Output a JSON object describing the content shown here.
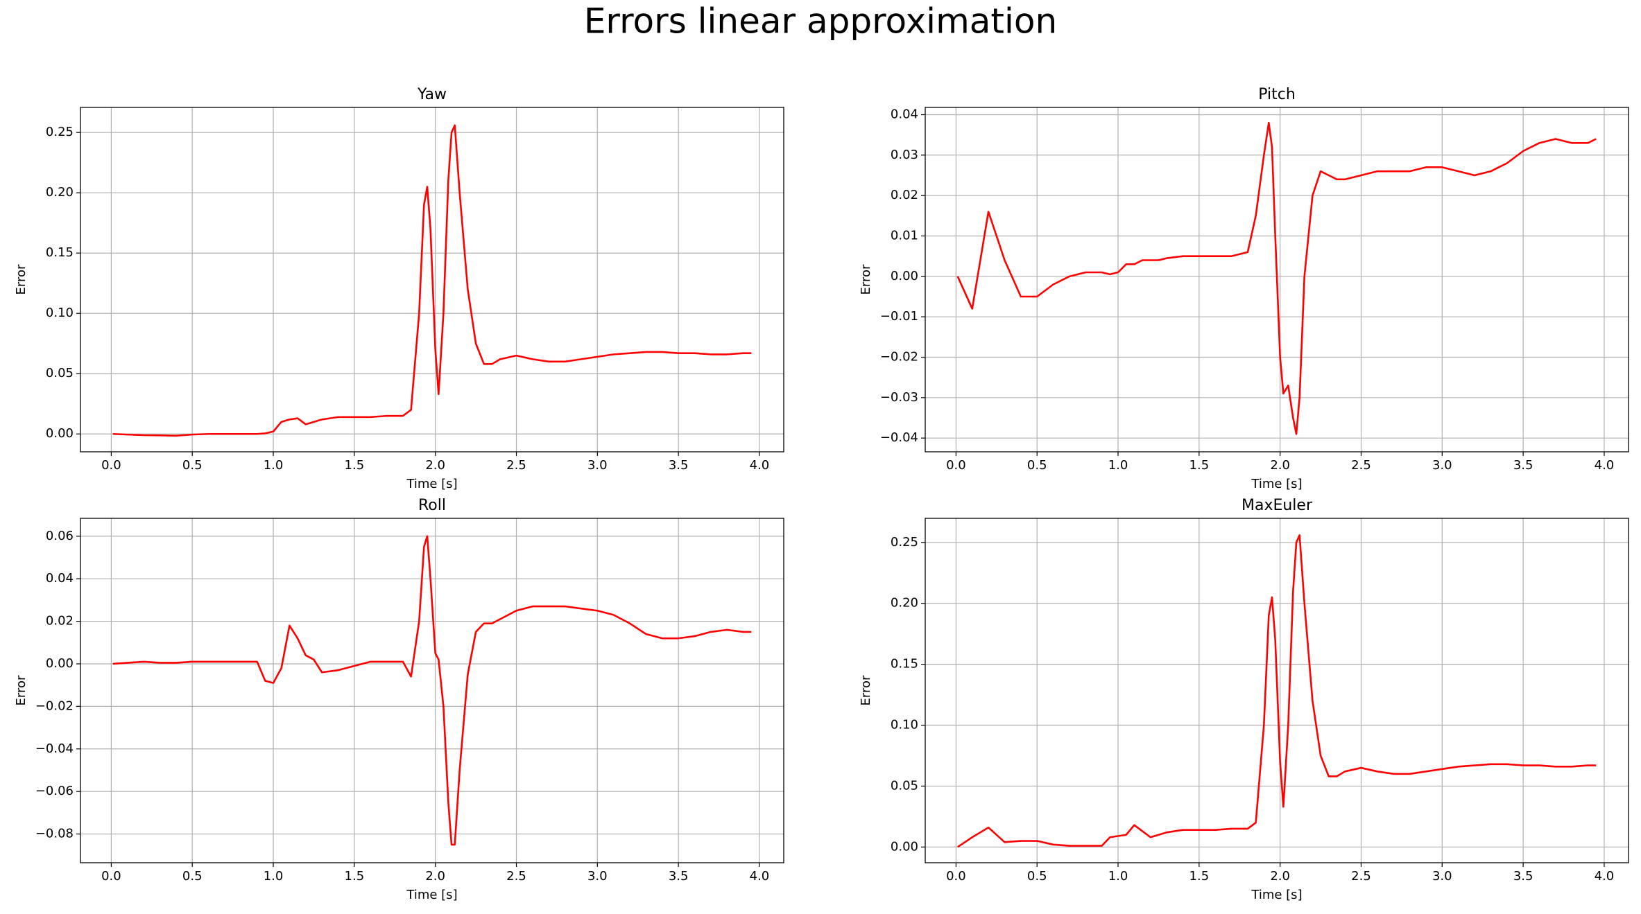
{
  "title": "Errors linear approximation",
  "chart_data": [
    {
      "type": "line",
      "title": "Yaw",
      "xlabel": "Time [s]",
      "ylabel": "Error",
      "color": "#ff0000",
      "grid": true,
      "x": [
        0.01,
        0.1,
        0.2,
        0.3,
        0.4,
        0.5,
        0.6,
        0.7,
        0.8,
        0.9,
        0.95,
        1.0,
        1.05,
        1.1,
        1.15,
        1.2,
        1.25,
        1.3,
        1.4,
        1.5,
        1.6,
        1.7,
        1.8,
        1.85,
        1.9,
        1.93,
        1.95,
        1.97,
        2.0,
        2.02,
        2.05,
        2.08,
        2.1,
        2.12,
        2.15,
        2.2,
        2.25,
        2.3,
        2.35,
        2.4,
        2.5,
        2.6,
        2.7,
        2.8,
        2.9,
        3.0,
        3.1,
        3.2,
        3.3,
        3.4,
        3.5,
        3.6,
        3.7,
        3.8,
        3.9,
        3.95
      ],
      "values": [
        0,
        -0.0005,
        -0.001,
        -0.0012,
        -0.0015,
        -0.0005,
        0,
        0,
        0,
        0,
        0.0005,
        0.002,
        0.01,
        0.012,
        0.013,
        0.008,
        0.01,
        0.012,
        0.014,
        0.014,
        0.014,
        0.015,
        0.015,
        0.02,
        0.1,
        0.19,
        0.205,
        0.17,
        0.07,
        0.033,
        0.1,
        0.21,
        0.25,
        0.256,
        0.2,
        0.12,
        0.075,
        0.058,
        0.058,
        0.062,
        0.065,
        0.062,
        0.06,
        0.06,
        0.062,
        0.064,
        0.066,
        0.067,
        0.068,
        0.068,
        0.067,
        0.067,
        0.066,
        0.066,
        0.067,
        0.067
      ],
      "xlim": [
        -0.19,
        4.15
      ],
      "ylim": [
        -0.0148,
        0.2708
      ],
      "xticks": [
        {
          "value": 0,
          "label": "0.0"
        },
        {
          "value": 0.5,
          "label": "0.5"
        },
        {
          "value": 1,
          "label": "1.0"
        },
        {
          "value": 1.5,
          "label": "1.5"
        },
        {
          "value": 2,
          "label": "2.0"
        },
        {
          "value": 2.5,
          "label": "2.5"
        },
        {
          "value": 3,
          "label": "3.0"
        },
        {
          "value": 3.5,
          "label": "3.5"
        },
        {
          "value": 4,
          "label": "4.0"
        }
      ],
      "yticks": [
        {
          "value": 0,
          "label": "0.00"
        },
        {
          "value": 0.05,
          "label": "0.05"
        },
        {
          "value": 0.1,
          "label": "0.10"
        },
        {
          "value": 0.15,
          "label": "0.15"
        },
        {
          "value": 0.2,
          "label": "0.20"
        },
        {
          "value": 0.25,
          "label": "0.25"
        }
      ]
    },
    {
      "type": "line",
      "title": "Pitch",
      "xlabel": "Time [s]",
      "ylabel": "Error",
      "color": "#ff0000",
      "grid": true,
      "x": [
        0.01,
        0.1,
        0.2,
        0.3,
        0.4,
        0.5,
        0.6,
        0.7,
        0.8,
        0.9,
        0.95,
        1.0,
        1.05,
        1.1,
        1.15,
        1.2,
        1.25,
        1.3,
        1.4,
        1.5,
        1.6,
        1.7,
        1.8,
        1.85,
        1.9,
        1.93,
        1.95,
        1.97,
        2.0,
        2.02,
        2.05,
        2.08,
        2.1,
        2.12,
        2.15,
        2.2,
        2.25,
        2.3,
        2.35,
        2.4,
        2.5,
        2.6,
        2.7,
        2.8,
        2.9,
        3.0,
        3.1,
        3.2,
        3.3,
        3.4,
        3.5,
        3.6,
        3.7,
        3.8,
        3.9,
        3.95
      ],
      "values": [
        0,
        -0.008,
        0.016,
        0.004,
        -0.005,
        -0.005,
        -0.002,
        0,
        0.001,
        0.001,
        0.0005,
        0.001,
        0.003,
        0.003,
        0.004,
        0.004,
        0.004,
        0.0045,
        0.005,
        0.005,
        0.005,
        0.005,
        0.006,
        0.015,
        0.03,
        0.038,
        0.032,
        0.01,
        -0.02,
        -0.029,
        -0.027,
        -0.035,
        -0.039,
        -0.03,
        0,
        0.02,
        0.026,
        0.025,
        0.024,
        0.024,
        0.025,
        0.026,
        0.026,
        0.026,
        0.027,
        0.027,
        0.026,
        0.025,
        0.026,
        0.028,
        0.031,
        0.033,
        0.034,
        0.033,
        0.033,
        0.034
      ],
      "xlim": [
        -0.19,
        4.15
      ],
      "ylim": [
        -0.0434,
        0.0418
      ],
      "xticks": [
        {
          "value": 0,
          "label": "0.0"
        },
        {
          "value": 0.5,
          "label": "0.5"
        },
        {
          "value": 1,
          "label": "1.0"
        },
        {
          "value": 1.5,
          "label": "1.5"
        },
        {
          "value": 2,
          "label": "2.0"
        },
        {
          "value": 2.5,
          "label": "2.5"
        },
        {
          "value": 3,
          "label": "3.0"
        },
        {
          "value": 3.5,
          "label": "3.5"
        },
        {
          "value": 4,
          "label": "4.0"
        }
      ],
      "yticks": [
        {
          "value": -0.04,
          "label": "−0.04"
        },
        {
          "value": -0.03,
          "label": "−0.03"
        },
        {
          "value": -0.02,
          "label": "−0.02"
        },
        {
          "value": -0.01,
          "label": "−0.01"
        },
        {
          "value": 0,
          "label": "0.00"
        },
        {
          "value": 0.01,
          "label": "0.01"
        },
        {
          "value": 0.02,
          "label": "0.02"
        },
        {
          "value": 0.03,
          "label": "0.03"
        },
        {
          "value": 0.04,
          "label": "0.04"
        }
      ]
    },
    {
      "type": "line",
      "title": "Roll",
      "xlabel": "Time [s]",
      "ylabel": "Error",
      "color": "#ff0000",
      "grid": true,
      "x": [
        0.01,
        0.1,
        0.2,
        0.3,
        0.4,
        0.5,
        0.6,
        0.7,
        0.8,
        0.9,
        0.95,
        1.0,
        1.05,
        1.1,
        1.15,
        1.2,
        1.25,
        1.3,
        1.4,
        1.5,
        1.6,
        1.7,
        1.8,
        1.85,
        1.9,
        1.93,
        1.95,
        1.97,
        2.0,
        2.02,
        2.05,
        2.08,
        2.1,
        2.12,
        2.15,
        2.2,
        2.25,
        2.3,
        2.35,
        2.4,
        2.5,
        2.6,
        2.7,
        2.8,
        2.9,
        3.0,
        3.1,
        3.2,
        3.3,
        3.4,
        3.5,
        3.6,
        3.7,
        3.8,
        3.9,
        3.95
      ],
      "values": [
        0,
        0.0005,
        0.001,
        0.0005,
        0.0005,
        0.001,
        0.001,
        0.001,
        0.001,
        0.001,
        -0.008,
        -0.009,
        -0.002,
        0.018,
        0.012,
        0.004,
        0.002,
        -0.004,
        -0.003,
        -0.001,
        0.001,
        0.001,
        0.001,
        -0.006,
        0.02,
        0.055,
        0.06,
        0.04,
        0.005,
        0.002,
        -0.02,
        -0.065,
        -0.085,
        -0.085,
        -0.05,
        -0.005,
        0.015,
        0.019,
        0.019,
        0.021,
        0.025,
        0.027,
        0.027,
        0.027,
        0.026,
        0.025,
        0.023,
        0.019,
        0.014,
        0.012,
        0.012,
        0.013,
        0.015,
        0.016,
        0.015,
        0.015
      ],
      "xlim": [
        -0.19,
        4.15
      ],
      "ylim": [
        -0.0935,
        0.0684
      ],
      "xticks": [
        {
          "value": 0,
          "label": "0.0"
        },
        {
          "value": 0.5,
          "label": "0.5"
        },
        {
          "value": 1,
          "label": "1.0"
        },
        {
          "value": 1.5,
          "label": "1.5"
        },
        {
          "value": 2,
          "label": "2.0"
        },
        {
          "value": 2.5,
          "label": "2.5"
        },
        {
          "value": 3,
          "label": "3.0"
        },
        {
          "value": 3.5,
          "label": "3.5"
        },
        {
          "value": 4,
          "label": "4.0"
        }
      ],
      "yticks": [
        {
          "value": -0.08,
          "label": "−0.08"
        },
        {
          "value": -0.06,
          "label": "−0.06"
        },
        {
          "value": -0.04,
          "label": "−0.04"
        },
        {
          "value": -0.02,
          "label": "−0.02"
        },
        {
          "value": 0,
          "label": "0.00"
        },
        {
          "value": 0.02,
          "label": "0.02"
        },
        {
          "value": 0.04,
          "label": "0.04"
        },
        {
          "value": 0.06,
          "label": "0.06"
        }
      ]
    },
    {
      "type": "line",
      "title": "MaxEuler",
      "xlabel": "Time [s]",
      "ylabel": "Error",
      "color": "#ff0000",
      "grid": true,
      "x": [
        0.01,
        0.1,
        0.2,
        0.3,
        0.4,
        0.5,
        0.6,
        0.7,
        0.8,
        0.9,
        0.95,
        1.0,
        1.05,
        1.1,
        1.15,
        1.2,
        1.25,
        1.3,
        1.4,
        1.5,
        1.6,
        1.7,
        1.8,
        1.85,
        1.9,
        1.93,
        1.95,
        1.97,
        2.0,
        2.02,
        2.05,
        2.08,
        2.1,
        2.12,
        2.15,
        2.2,
        2.25,
        2.3,
        2.35,
        2.4,
        2.5,
        2.6,
        2.7,
        2.8,
        2.9,
        3.0,
        3.1,
        3.2,
        3.3,
        3.4,
        3.5,
        3.6,
        3.7,
        3.8,
        3.9,
        3.95
      ],
      "values": [
        0,
        0.008,
        0.016,
        0.004,
        0.005,
        0.005,
        0.002,
        0.001,
        0.001,
        0.001,
        0.008,
        0.009,
        0.01,
        0.018,
        0.013,
        0.008,
        0.01,
        0.012,
        0.014,
        0.014,
        0.014,
        0.015,
        0.015,
        0.02,
        0.1,
        0.19,
        0.205,
        0.17,
        0.07,
        0.033,
        0.1,
        0.21,
        0.25,
        0.256,
        0.2,
        0.12,
        0.075,
        0.058,
        0.058,
        0.062,
        0.065,
        0.062,
        0.06,
        0.06,
        0.062,
        0.064,
        0.066,
        0.067,
        0.068,
        0.068,
        0.067,
        0.067,
        0.066,
        0.066,
        0.067,
        0.067
      ],
      "xlim": [
        -0.19,
        4.15
      ],
      "ylim": [
        -0.0129,
        0.2698
      ],
      "xticks": [
        {
          "value": 0,
          "label": "0.0"
        },
        {
          "value": 0.5,
          "label": "0.5"
        },
        {
          "value": 1,
          "label": "1.0"
        },
        {
          "value": 1.5,
          "label": "1.5"
        },
        {
          "value": 2,
          "label": "2.0"
        },
        {
          "value": 2.5,
          "label": "2.5"
        },
        {
          "value": 3,
          "label": "3.0"
        },
        {
          "value": 3.5,
          "label": "3.5"
        },
        {
          "value": 4,
          "label": "4.0"
        }
      ],
      "yticks": [
        {
          "value": 0,
          "label": "0.00"
        },
        {
          "value": 0.05,
          "label": "0.05"
        },
        {
          "value": 0.1,
          "label": "0.10"
        },
        {
          "value": 0.15,
          "label": "0.15"
        },
        {
          "value": 0.2,
          "label": "0.20"
        },
        {
          "value": 0.25,
          "label": "0.25"
        }
      ]
    }
  ]
}
